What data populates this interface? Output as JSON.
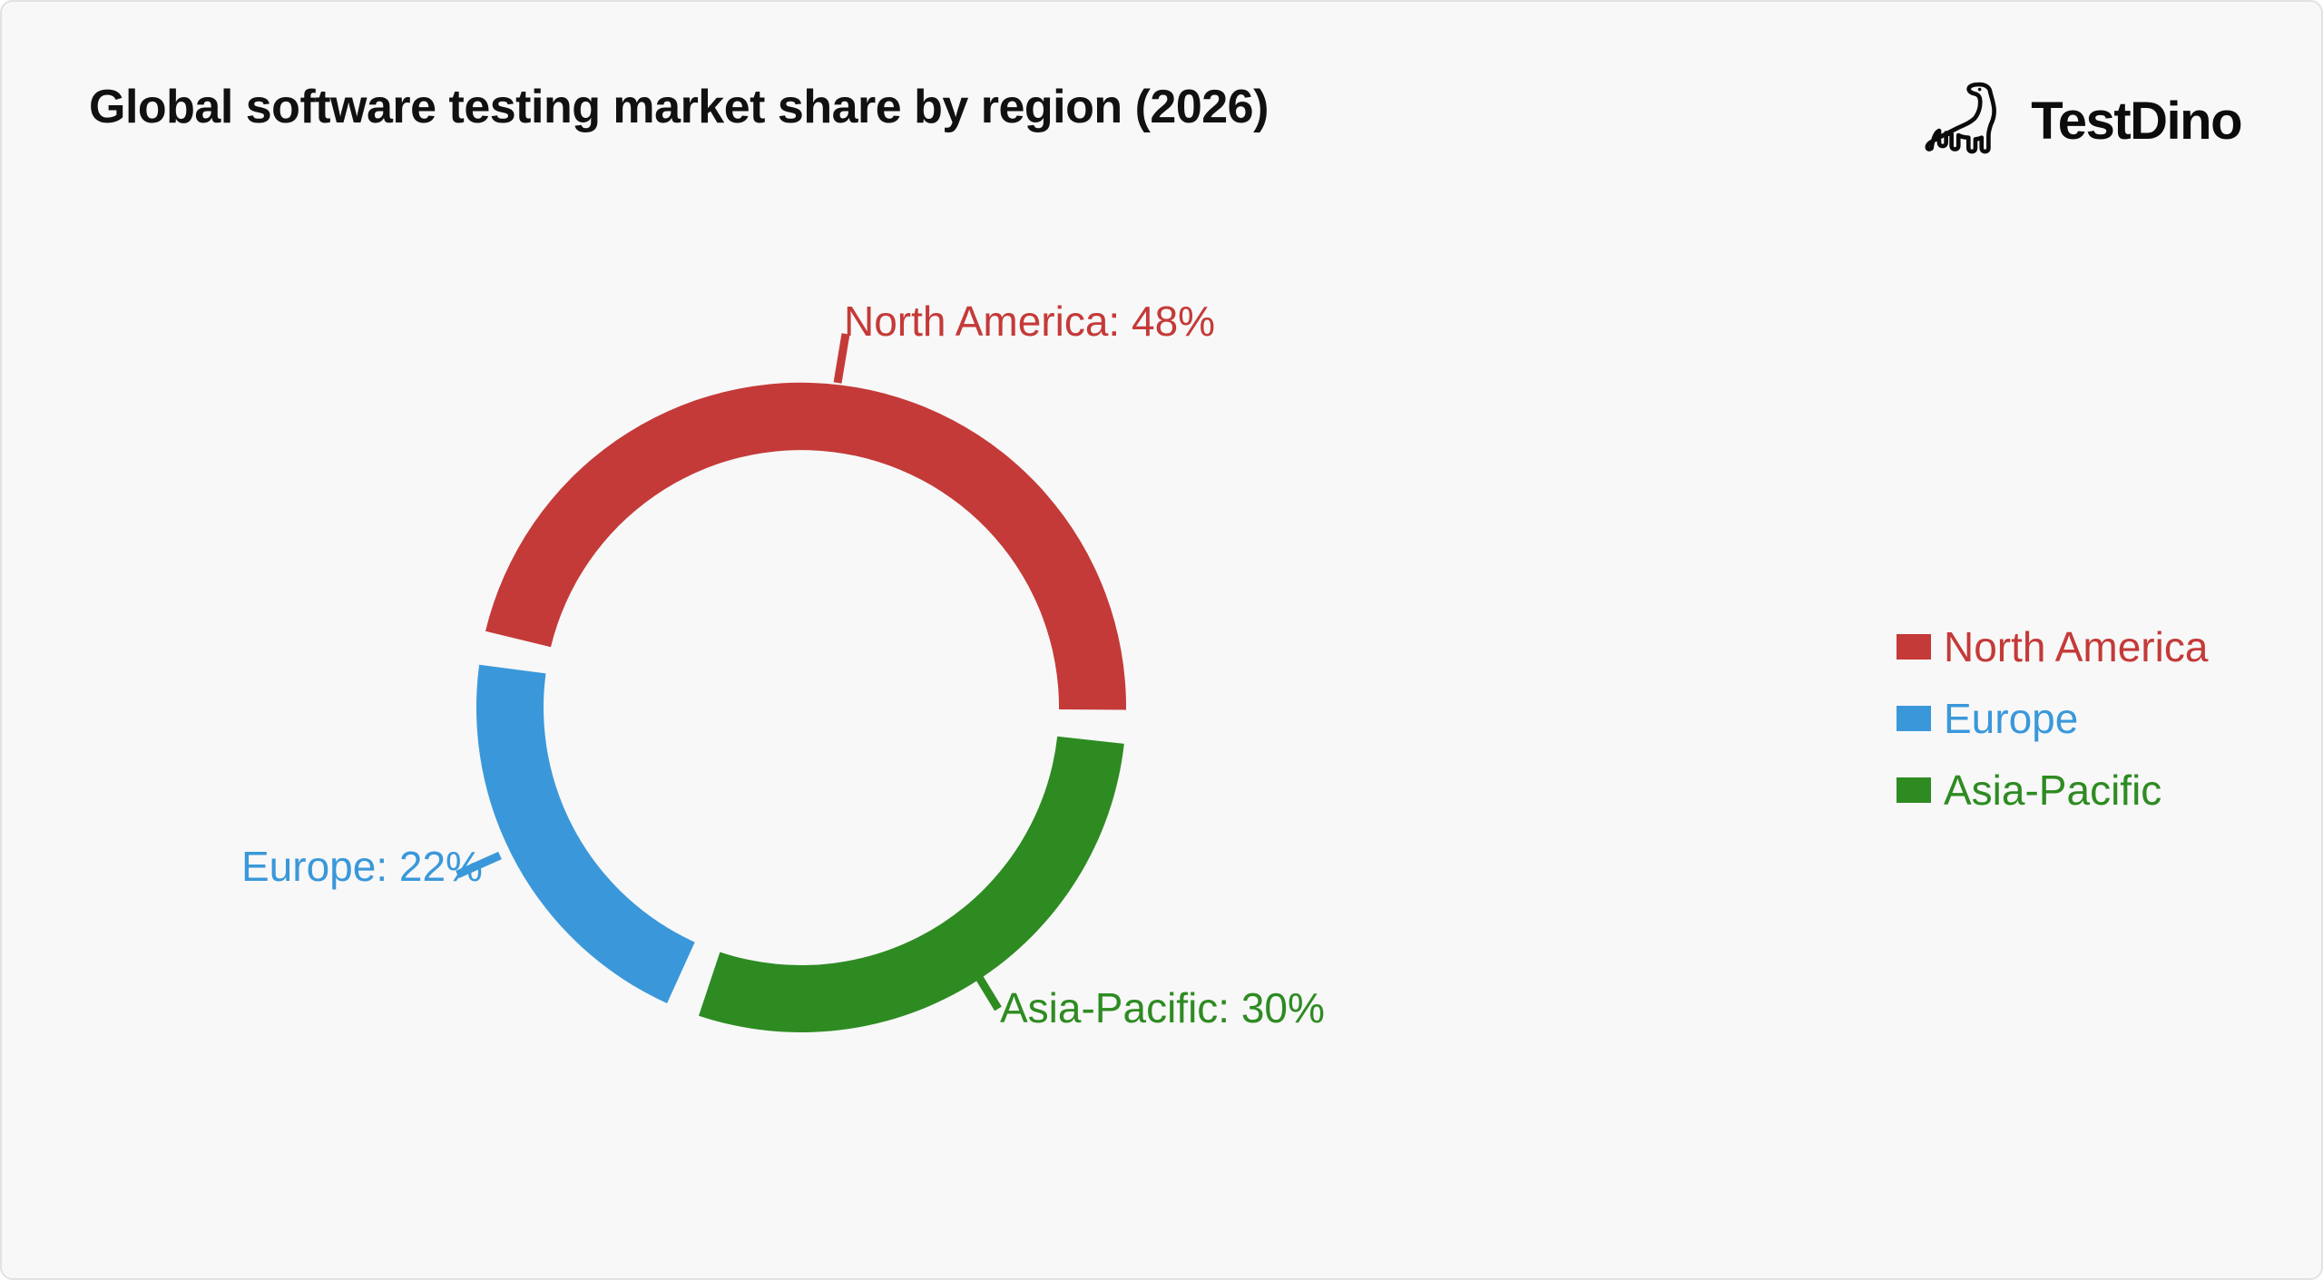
{
  "page": {
    "background": "#f8f8f8",
    "border_color": "#e2e2e2"
  },
  "header": {
    "title": "Global software testing market share by region (2026)"
  },
  "brand": {
    "name": "TestDino",
    "logo_icon": "dinosaur-outline-icon"
  },
  "chart_data": {
    "type": "pie",
    "subtype": "donut",
    "title": "Global software testing market share by region (2026)",
    "unit": "%",
    "series": [
      {
        "name": "North America",
        "value": 48,
        "color": "#c43a38",
        "label": "North America: 48%"
      },
      {
        "name": "Asia-Pacific",
        "value": 30,
        "color": "#2e8b22",
        "label": "Asia-Pacific: 30%"
      },
      {
        "name": "Europe",
        "value": 22,
        "color": "#3a98da",
        "label": "Europe: 22%"
      }
    ],
    "legend": {
      "position": "right",
      "items": [
        {
          "label": "North America",
          "color": "#c43a38"
        },
        {
          "label": "Europe",
          "color": "#3a98da"
        },
        {
          "label": "Asia-Pacific",
          "color": "#2e8b22"
        }
      ]
    },
    "layout_hints": {
      "start_angle_deg": 280.6,
      "pad_angle_deg": 6,
      "clockwise": true,
      "inner_radius_ratio": 0.79,
      "labels": "outside-with-leader-lines",
      "grid": false
    }
  }
}
